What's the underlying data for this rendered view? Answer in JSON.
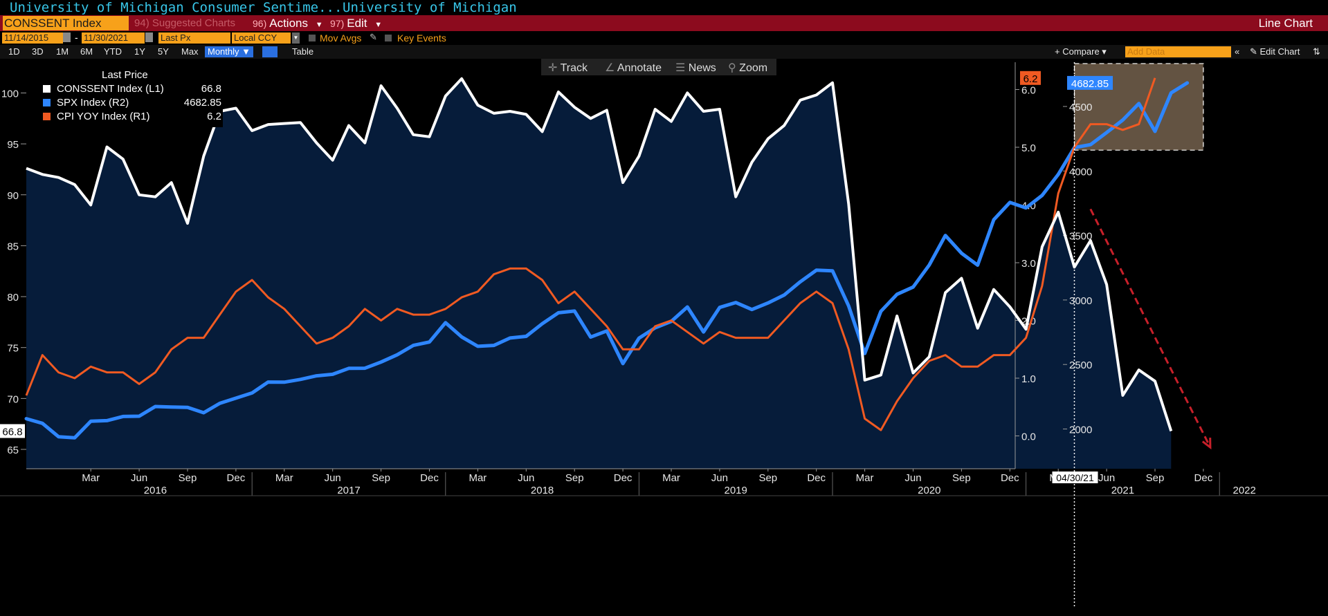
{
  "window": {
    "title": "University of Michigan Consumer Sentime...",
    "source": "University of Michigan"
  },
  "menu": {
    "ticker": "CONSSENT Index",
    "suggested": {
      "num": "94)",
      "label": "Suggested Charts"
    },
    "actions": {
      "num": "96)",
      "label": "Actions"
    },
    "edit": {
      "num": "97)",
      "label": "Edit"
    },
    "chart_type": "Line Chart"
  },
  "options": {
    "start_date": "11/14/2015",
    "end_date": "11/30/2021",
    "field": "Last Px",
    "currency": "Local CCY",
    "mov_avgs": "Mov Avgs",
    "key_events": "Key Events"
  },
  "ranges": {
    "items": [
      "1D",
      "3D",
      "1M",
      "6M",
      "YTD",
      "1Y",
      "5Y",
      "Max"
    ],
    "frequency": "Monthly",
    "table": "Table",
    "compare": "Compare",
    "add_data_placeholder": "Add Data",
    "edit_chart": "Edit Chart"
  },
  "tools": {
    "track": "Track",
    "annotate": "Annotate",
    "news": "News",
    "zoom": "Zoom"
  },
  "legend": {
    "header": "Last Price",
    "rows": [
      {
        "name": "CONSSENT Index  (L1)",
        "value": "66.8",
        "color": "#ffffff"
      },
      {
        "name": "SPX Index  (R2)",
        "value": "4682.85",
        "color": "#2e86ff"
      },
      {
        "name": "CPI YOY Index  (R1)",
        "value": "6.2",
        "color": "#f05a22"
      }
    ]
  },
  "chart_data": {
    "type": "line",
    "x_range": [
      "2015-11",
      "2021-12"
    ],
    "x_tick_labels": [
      "Mar",
      "Jun",
      "Sep",
      "Dec",
      "Mar",
      "Jun",
      "Sep",
      "Dec",
      "Mar",
      "Jun",
      "Sep",
      "Dec",
      "Mar",
      "Jun",
      "Sep",
      "Dec",
      "Mar",
      "Jun",
      "Sep",
      "Dec",
      "Mar",
      "Jun",
      "Sep",
      "Dec"
    ],
    "year_labels": [
      "2016",
      "2017",
      "2018",
      "2019",
      "2020",
      "2021",
      "2022"
    ],
    "left_axis": {
      "ticks": [
        "65",
        "70",
        "75",
        "80",
        "85",
        "90",
        "95",
        "100"
      ],
      "ylim": [
        62.8,
        103.5
      ]
    },
    "right1_axis": {
      "ticks": [
        "0.0",
        "1.0",
        "2.0",
        "3.0",
        "4.0",
        "5.0",
        "6.0"
      ],
      "ylim": [
        -0.55,
        6.65
      ]
    },
    "right2_axis": {
      "ticks": [
        "2000",
        "2500",
        "3000",
        "3500",
        "4000",
        "4500"
      ],
      "ylim": [
        1826,
        4846
      ]
    },
    "series": [
      {
        "name": "CONSSENT Index  (L1)",
        "axis": "left",
        "color": "#ffffff",
        "fill": "#061c3a",
        "values": [
          92.6,
          92.0,
          91.7,
          91.0,
          89.0,
          94.7,
          93.5,
          90.0,
          89.8,
          91.2,
          87.2,
          93.8,
          98.2,
          98.5,
          96.3,
          96.9,
          97.0,
          97.1,
          95.1,
          93.4,
          96.8,
          95.1,
          100.7,
          98.5,
          95.9,
          95.7,
          99.7,
          101.4,
          98.8,
          98.0,
          98.2,
          97.9,
          96.2,
          100.1,
          98.6,
          97.5,
          98.3,
          91.2,
          93.8,
          98.4,
          97.2,
          100.0,
          98.2,
          98.4,
          89.8,
          93.2,
          95.5,
          96.8,
          99.3,
          99.8,
          101.0,
          89.1,
          71.8,
          72.3,
          78.1,
          72.5,
          74.1,
          80.4,
          81.8,
          76.9,
          80.7,
          79.0,
          76.8,
          84.9,
          88.3,
          82.9,
          85.5,
          81.2,
          70.3,
          72.8,
          71.7,
          66.8
        ],
        "last_value": "66.8"
      },
      {
        "name": "SPX Index  (R2)",
        "axis": "right2",
        "color": "#2e86ff",
        "values": [
          2080,
          2044,
          1940,
          1932,
          2060,
          2065,
          2097,
          2099,
          2174,
          2170,
          2168,
          2126,
          2199,
          2239,
          2279,
          2364,
          2363,
          2384,
          2412,
          2424,
          2470,
          2471,
          2519,
          2575,
          2648,
          2674,
          2824,
          2714,
          2641,
          2648,
          2705,
          2718,
          2816,
          2901,
          2914,
          2712,
          2760,
          2507,
          2704,
          2784,
          2834,
          2946,
          2752,
          2942,
          2980,
          2926,
          2977,
          3038,
          3141,
          3231,
          3226,
          2954,
          2585,
          2912,
          3044,
          3100,
          3271,
          3500,
          3363,
          3270,
          3622,
          3756,
          3714,
          3811,
          3973,
          4181,
          4204,
          4298,
          4395,
          4523,
          4307,
          4605,
          4682.85
        ],
        "last_value": "4682.85"
      },
      {
        "name": "CPI YOY Index  (R1)",
        "axis": "right1",
        "color": "#f05a22",
        "values": [
          0.7,
          1.4,
          1.1,
          1.0,
          1.2,
          1.1,
          1.1,
          0.9,
          1.1,
          1.5,
          1.7,
          1.7,
          2.1,
          2.5,
          2.7,
          2.4,
          2.2,
          1.9,
          1.6,
          1.7,
          1.9,
          2.2,
          2.0,
          2.2,
          2.1,
          2.1,
          2.2,
          2.4,
          2.5,
          2.8,
          2.9,
          2.9,
          2.7,
          2.3,
          2.5,
          2.2,
          1.9,
          1.5,
          1.5,
          1.9,
          2.0,
          1.8,
          1.6,
          1.8,
          1.7,
          1.7,
          1.7,
          2.0,
          2.3,
          2.5,
          2.3,
          1.5,
          0.3,
          0.1,
          0.6,
          1.0,
          1.3,
          1.4,
          1.2,
          1.2,
          1.4,
          1.4,
          1.7,
          2.6,
          4.2,
          5.0,
          5.4,
          5.4,
          5.3,
          5.4,
          6.2
        ],
        "last_value": "6.2"
      }
    ],
    "annotations": {
      "crosshair_date": "04/30/21",
      "highlight_box": {
        "x_start": "2021-04",
        "x_end": "2021-12",
        "y_from_right1": 4.95,
        "y_to_right1": 6.45
      },
      "trend_arrow": {
        "color": "#c8202a",
        "from": [
          "2021-05",
          88.6
        ],
        "to": [
          "2021-12",
          65.2
        ]
      }
    }
  }
}
